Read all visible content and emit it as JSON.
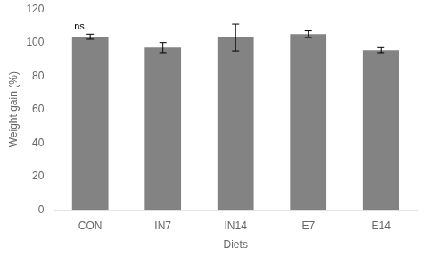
{
  "chart_data": {
    "type": "bar",
    "categories": [
      "CON",
      "IN7",
      "IN14",
      "E7",
      "E14"
    ],
    "values": [
      103.5,
      97.0,
      103.0,
      105.0,
      95.5
    ],
    "errors": [
      1.5,
      3.0,
      8.0,
      2.0,
      1.5
    ],
    "color": "#838383",
    "xlabel": "Diets",
    "ylabel": "Weight gain (%)",
    "ylim": [
      0,
      120
    ],
    "yticks": [
      0,
      20,
      40,
      60,
      80,
      100,
      120
    ],
    "annotations": [
      {
        "text": "ns",
        "category": "CON"
      }
    ],
    "grid": false,
    "legend": false
  }
}
